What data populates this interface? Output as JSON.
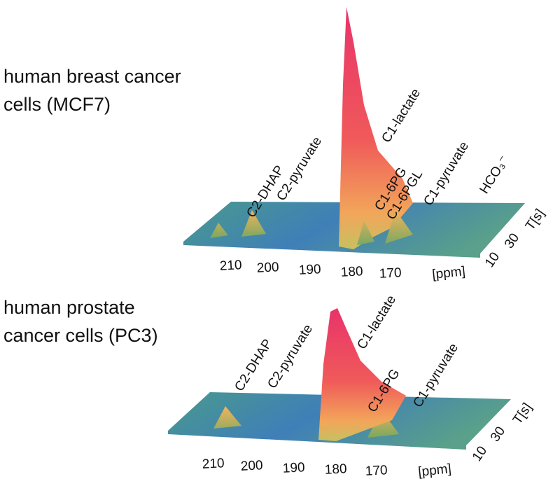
{
  "panels": [
    {
      "label": [
        "human breast cancer",
        "cells (MCF7)"
      ],
      "x_ticks": [
        "210",
        "200",
        "190",
        "180",
        "170"
      ],
      "x_unit": "[ppm]",
      "t_ticks": [
        "10",
        "30"
      ],
      "t_unit": "T[s]",
      "peaks": [
        "C2-DHAP",
        "C2-pyruvate",
        "C1-lactate",
        "C1-6PG",
        "C1-6PGL",
        "C1-pyruvate",
        "HCO₃⁻"
      ]
    },
    {
      "label": [
        "human prostate",
        "cancer cells (PC3)"
      ],
      "x_ticks": [
        "210",
        "200",
        "190",
        "180",
        "170"
      ],
      "x_unit": "[ppm]",
      "t_ticks": [
        "10",
        "30"
      ],
      "t_unit": "T[s]",
      "peaks": [
        "C2-DHAP",
        "C2-pyruvate",
        "C1-lactate",
        "C1-6PG",
        "C1-pyruvate"
      ]
    }
  ]
}
